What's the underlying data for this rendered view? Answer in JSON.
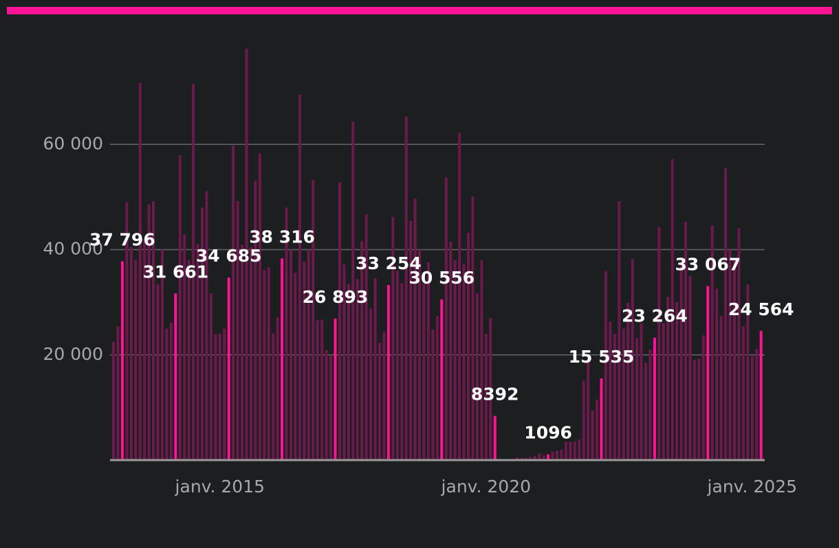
{
  "chart_data": {
    "type": "bar",
    "x": [
      "2013-01",
      "2013-02",
      "2013-03",
      "2013-04",
      "2013-05",
      "2013-06",
      "2013-07",
      "2013-08",
      "2013-09",
      "2013-10",
      "2013-11",
      "2013-12",
      "2014-01",
      "2014-02",
      "2014-03",
      "2014-04",
      "2014-05",
      "2014-06",
      "2014-07",
      "2014-08",
      "2014-09",
      "2014-10",
      "2014-11",
      "2014-12",
      "2015-01",
      "2015-02",
      "2015-03",
      "2015-04",
      "2015-05",
      "2015-06",
      "2015-07",
      "2015-08",
      "2015-09",
      "2015-10",
      "2015-11",
      "2015-12",
      "2016-01",
      "2016-02",
      "2016-03",
      "2016-04",
      "2016-05",
      "2016-06",
      "2016-07",
      "2016-08",
      "2016-09",
      "2016-10",
      "2016-11",
      "2016-12",
      "2017-01",
      "2017-02",
      "2017-03",
      "2017-04",
      "2017-05",
      "2017-06",
      "2017-07",
      "2017-08",
      "2017-09",
      "2017-10",
      "2017-11",
      "2017-12",
      "2018-01",
      "2018-02",
      "2018-03",
      "2018-04",
      "2018-05",
      "2018-06",
      "2018-07",
      "2018-08",
      "2018-09",
      "2018-10",
      "2018-11",
      "2018-12",
      "2019-01",
      "2019-02",
      "2019-03",
      "2019-04",
      "2019-05",
      "2019-06",
      "2019-07",
      "2019-08",
      "2019-09",
      "2019-10",
      "2019-11",
      "2019-12",
      "2020-01",
      "2020-02",
      "2020-03",
      "2020-04",
      "2020-05",
      "2020-06",
      "2020-07",
      "2020-08",
      "2020-09",
      "2020-10",
      "2020-11",
      "2020-12",
      "2021-01",
      "2021-02",
      "2021-03",
      "2021-04",
      "2021-05",
      "2021-06",
      "2021-07",
      "2021-08",
      "2021-09",
      "2021-10",
      "2021-11",
      "2021-12",
      "2022-01",
      "2022-02",
      "2022-03",
      "2022-04",
      "2022-05",
      "2022-06",
      "2022-07",
      "2022-08",
      "2022-09",
      "2022-10",
      "2022-11",
      "2022-12",
      "2023-01",
      "2023-02",
      "2023-03",
      "2023-04",
      "2023-05",
      "2023-06",
      "2023-07",
      "2023-08",
      "2023-09",
      "2023-10",
      "2023-11",
      "2023-12",
      "2024-01",
      "2024-02",
      "2024-03",
      "2024-04",
      "2024-05",
      "2024-06",
      "2024-07",
      "2024-08",
      "2024-09",
      "2024-10",
      "2024-11",
      "2024-12",
      "2025-01",
      "2025-02",
      "2025-03"
    ],
    "values": [
      22500,
      25400,
      37796,
      49000,
      40500,
      38000,
      71700,
      42000,
      48600,
      49200,
      33400,
      40000,
      25000,
      26100,
      31661,
      57900,
      42900,
      38000,
      71500,
      41100,
      48000,
      51100,
      31700,
      23900,
      24000,
      25000,
      34685,
      59700,
      49200,
      40900,
      78200,
      40500,
      53100,
      58300,
      36100,
      36600,
      24100,
      27100,
      38316,
      48000,
      40000,
      35600,
      69400,
      37700,
      40000,
      53200,
      26600,
      26700,
      20900,
      20000,
      26893,
      52800,
      37200,
      33500,
      64300,
      34400,
      41600,
      46700,
      28800,
      34600,
      22300,
      24300,
      33254,
      46200,
      36000,
      33600,
      65300,
      45500,
      49700,
      40000,
      33500,
      37600,
      24800,
      27400,
      30556,
      53700,
      41500,
      38000,
      62200,
      37300,
      43200,
      50100,
      31700,
      38000,
      24000,
      27000,
      8392,
      0,
      0,
      0,
      0,
      500,
      450,
      400,
      600,
      800,
      1300,
      900,
      1096,
      1600,
      1800,
      2000,
      3500,
      3500,
      3500,
      3900,
      15100,
      18600,
      9500,
      11500,
      15535,
      35900,
      26300,
      24000,
      49200,
      25000,
      29900,
      38200,
      23200,
      26000,
      18500,
      21000,
      23264,
      44300,
      26000,
      31000,
      57200,
      30000,
      37000,
      45300,
      35000,
      19000,
      19300,
      23700,
      33067,
      44600,
      32600,
      27400,
      55500,
      40000,
      38000,
      44100,
      25400,
      33400,
      19700,
      21100,
      24564
    ],
    "value_labels": [
      null,
      null,
      "37 796",
      null,
      null,
      null,
      null,
      null,
      null,
      null,
      null,
      null,
      null,
      null,
      "31 661",
      null,
      null,
      null,
      null,
      null,
      null,
      null,
      null,
      null,
      null,
      null,
      "34 685",
      null,
      null,
      null,
      null,
      null,
      null,
      null,
      null,
      null,
      null,
      null,
      "38 316",
      null,
      null,
      null,
      null,
      null,
      null,
      null,
      null,
      null,
      null,
      null,
      "26 893",
      null,
      null,
      null,
      null,
      null,
      null,
      null,
      null,
      null,
      null,
      null,
      "33 254",
      null,
      null,
      null,
      null,
      null,
      null,
      null,
      null,
      null,
      null,
      null,
      "30 556",
      null,
      null,
      null,
      null,
      null,
      null,
      null,
      null,
      null,
      null,
      null,
      "8392",
      null,
      null,
      null,
      null,
      null,
      null,
      null,
      null,
      null,
      null,
      null,
      "1096",
      null,
      null,
      null,
      null,
      null,
      null,
      null,
      null,
      null,
      null,
      null,
      "15 535",
      null,
      null,
      null,
      null,
      null,
      null,
      null,
      null,
      null,
      null,
      null,
      "23 264",
      null,
      null,
      null,
      null,
      null,
      null,
      null,
      null,
      null,
      null,
      null,
      "33 067",
      null,
      null,
      null,
      null,
      null,
      null,
      null,
      null,
      null,
      null,
      null,
      "24 564"
    ],
    "color": "#6b1a4c",
    "highlight_color": "#ff1493",
    "ylim": [
      0,
      80000
    ],
    "yticks": [
      {
        "value": 20000,
        "label": "20 000"
      },
      {
        "value": 40000,
        "label": "40 000"
      },
      {
        "value": 60000,
        "label": "60 000"
      }
    ],
    "xticks": [
      {
        "value": "2015-01",
        "label": "janv. 2015"
      },
      {
        "value": "2020-01",
        "label": "janv. 2020"
      },
      {
        "value": "2025-01",
        "label": "janv. 2025"
      }
    ],
    "grid": true
  }
}
